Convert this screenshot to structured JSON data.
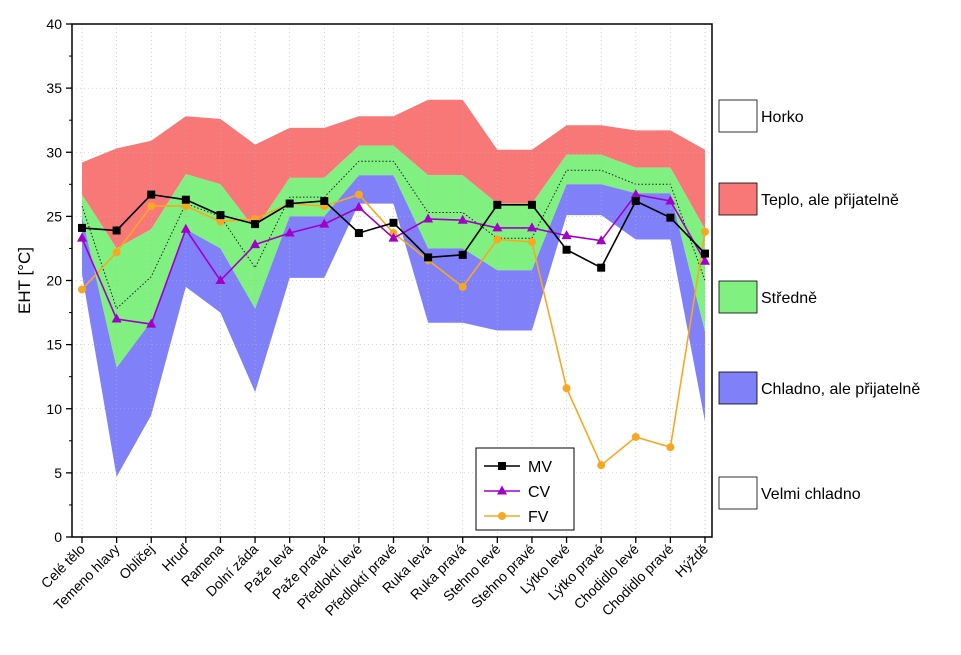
{
  "chart_data": {
    "type": "line",
    "ylabel": "EHT [°C]",
    "xlabel": "",
    "ylim": [
      0,
      40
    ],
    "yticks": [
      0,
      5,
      10,
      15,
      20,
      25,
      30,
      35,
      40
    ],
    "categories": [
      "Celé tělo",
      "Temeno hlavy",
      "Obličej",
      "Hruď",
      "Ramena",
      "Dolní záda",
      "Paže levá",
      "Paže pravá",
      "Předloktí levé",
      "Předloktí pravé",
      "Ruka levá",
      "Ruka pravá",
      "Stehno levé",
      "Stehno pravé",
      "Lýtko levé",
      "Lýtko pravé",
      "Chodidlo levé",
      "Chodidlo pravé",
      "Hýždě"
    ],
    "zones": [
      {
        "name": "Horko",
        "color": "#ffffff",
        "lower": null,
        "upper": null
      },
      {
        "name": "Teplo, ale přijatelně",
        "color": "#f87878",
        "lower": [
          26.7,
          22.5,
          24.0,
          28.3,
          27.5,
          24.0,
          28.0,
          28.0,
          30.5,
          30.5,
          28.2,
          28.2,
          26.0,
          26.0,
          29.8,
          29.8,
          28.8,
          28.8,
          24.0
        ],
        "upper": [
          29.2,
          30.3,
          30.9,
          32.8,
          32.6,
          30.6,
          31.9,
          31.9,
          32.8,
          32.8,
          34.1,
          34.1,
          30.2,
          30.2,
          32.1,
          32.1,
          31.7,
          31.7,
          30.2
        ]
      },
      {
        "name": "Středně",
        "color": "#80f080",
        "lower": [
          25.0,
          13.2,
          16.8,
          24.0,
          22.5,
          17.8,
          25.0,
          25.0,
          28.2,
          28.2,
          22.5,
          22.5,
          20.8,
          20.8,
          27.5,
          27.5,
          26.8,
          26.8,
          16.0
        ],
        "upper": null
      },
      {
        "name": "Chladno, ale přijatelně",
        "color": "#8080f8",
        "lower": [
          20.5,
          4.7,
          9.5,
          19.5,
          17.5,
          11.3,
          20.2,
          20.2,
          26.0,
          26.0,
          16.7,
          16.7,
          16.1,
          16.1,
          25.1,
          25.1,
          23.2,
          23.2,
          9.0
        ],
        "upper": null
      },
      {
        "name": "Velmi chladno",
        "color": "#ffffff",
        "lower": null,
        "upper": null
      }
    ],
    "dotted_line": [
      25.8,
      17.8,
      20.3,
      26.0,
      25.0,
      21.0,
      26.5,
      26.5,
      29.3,
      29.3,
      25.3,
      25.3,
      23.3,
      23.3,
      28.6,
      28.6,
      27.5,
      27.5,
      20.0
    ],
    "series": [
      {
        "name": "MV",
        "color": "#000000",
        "marker": "square",
        "values": [
          24.1,
          23.9,
          26.7,
          26.3,
          25.1,
          24.4,
          26.0,
          26.2,
          23.7,
          24.5,
          21.8,
          22.0,
          25.9,
          25.9,
          22.4,
          21.0,
          26.2,
          24.9,
          22.1
        ]
      },
      {
        "name": "CV",
        "color": "#a000c8",
        "marker": "triangle",
        "values": [
          23.3,
          17.0,
          16.6,
          24.0,
          20.0,
          22.8,
          23.7,
          24.4,
          25.7,
          23.3,
          24.8,
          24.7,
          24.1,
          24.1,
          23.5,
          23.1,
          26.7,
          26.2,
          21.5
        ]
      },
      {
        "name": "FV",
        "color": "#f8a820",
        "marker": "circle",
        "values": [
          19.3,
          22.2,
          25.8,
          25.8,
          24.6,
          24.8,
          26.0,
          25.8,
          26.7,
          23.7,
          21.6,
          19.5,
          23.2,
          23.0,
          11.6,
          5.6,
          7.8,
          7.0,
          23.8
        ]
      }
    ]
  }
}
